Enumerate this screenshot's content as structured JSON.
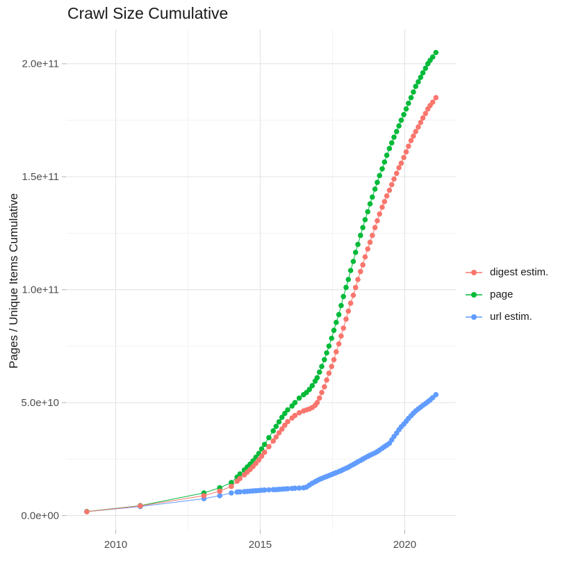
{
  "title": "Crawl Size Cumulative",
  "chart_data": {
    "type": "line",
    "title": "Crawl Size Cumulative",
    "xlabel": "",
    "ylabel": "Pages / Unique Items Cumulative",
    "xlim": [
      2008.28,
      2021.77
    ],
    "ylim": [
      -6300000000.0,
      215300000000.0
    ],
    "x_ticks": [
      {
        "value": 2010,
        "label": "2010"
      },
      {
        "value": 2015,
        "label": "2015"
      },
      {
        "value": 2020,
        "label": "2020"
      }
    ],
    "y_ticks": [
      {
        "value": 0,
        "label": "0.0e+00"
      },
      {
        "value": 50000000000.0,
        "label": "5.0e+10"
      },
      {
        "value": 100000000000.0,
        "label": "1.0e+11"
      },
      {
        "value": 150000000000.0,
        "label": "1.5e+11"
      },
      {
        "value": 200000000000.0,
        "label": "2.0e+11"
      }
    ],
    "x_minor_ticks": [
      2012.5,
      2017.5
    ],
    "y_minor_ticks": [
      25000000000.0,
      75000000000.0,
      125000000000.0,
      175000000000.0
    ],
    "grid": {
      "major_color": "#e5e5e5",
      "minor_color": "#f2f2f2",
      "on": true
    },
    "tick_mark_color": "#bdbdbd",
    "tick_label_color": "#4d4d4d",
    "legend_position": "right",
    "z_order": [
      2,
      1,
      0
    ],
    "point_radius": 3.8,
    "series": [
      {
        "id": "digest-estim",
        "name": "digest estim.",
        "color": "#F8766D",
        "points": [
          [
            2009.0,
            1700000000.0
          ],
          [
            2010.85,
            4300000000.0
          ],
          [
            2013.05,
            8800000000.0
          ],
          [
            2013.6,
            10800000000.0
          ],
          [
            2014.0,
            12900000000.0
          ],
          [
            2014.2,
            15200000000.0
          ],
          [
            2014.3,
            16400000000.0
          ],
          [
            2014.45,
            18000000000.0
          ],
          [
            2014.55,
            19200000000.0
          ],
          [
            2014.65,
            20400000000.0
          ],
          [
            2014.75,
            21700000000.0
          ],
          [
            2014.85,
            23100000000.0
          ],
          [
            2014.95,
            24600000000.0
          ],
          [
            2015.05,
            26300000000.0
          ],
          [
            2015.15,
            28000000000.0
          ],
          [
            2015.3,
            30500000000.0
          ],
          [
            2015.45,
            33000000000.0
          ],
          [
            2015.55,
            34800000000.0
          ],
          [
            2015.65,
            36600000000.0
          ],
          [
            2015.75,
            38300000000.0
          ],
          [
            2015.85,
            40000000000.0
          ],
          [
            2015.95,
            41600000000.0
          ],
          [
            2016.1,
            43200000000.0
          ],
          [
            2016.2,
            44300000000.0
          ],
          [
            2016.35,
            45500000000.0
          ],
          [
            2016.5,
            46300000000.0
          ],
          [
            2016.6,
            46800000000.0
          ],
          [
            2016.7,
            47200000000.0
          ],
          [
            2016.8,
            47800000000.0
          ],
          [
            2016.9,
            48800000000.0
          ],
          [
            2016.97,
            50000000000.0
          ],
          [
            2017.05,
            52000000000.0
          ],
          [
            2017.13,
            54500000000.0
          ],
          [
            2017.22,
            57000000000.0
          ],
          [
            2017.3,
            60000000000.0
          ],
          [
            2017.38,
            63000000000.0
          ],
          [
            2017.47,
            66000000000.0
          ],
          [
            2017.55,
            69000000000.0
          ],
          [
            2017.63,
            72500000000.0
          ],
          [
            2017.72,
            76000000000.0
          ],
          [
            2017.8,
            79500000000.0
          ],
          [
            2017.88,
            83000000000.0
          ],
          [
            2017.97,
            87000000000.0
          ],
          [
            2018.05,
            90500000000.0
          ],
          [
            2018.13,
            94000000000.0
          ],
          [
            2018.22,
            97500000000.0
          ],
          [
            2018.3,
            101000000000.0
          ],
          [
            2018.38,
            104500000000.0
          ],
          [
            2018.47,
            108000000000.0
          ],
          [
            2018.55,
            111000000000.0
          ],
          [
            2018.63,
            114500000000.0
          ],
          [
            2018.72,
            118000000000.0
          ],
          [
            2018.8,
            121000000000.0
          ],
          [
            2018.88,
            124000000000.0
          ],
          [
            2018.97,
            127500000000.0
          ],
          [
            2019.05,
            130500000000.0
          ],
          [
            2019.13,
            133500000000.0
          ],
          [
            2019.22,
            136500000000.0
          ],
          [
            2019.3,
            139000000000.0
          ],
          [
            2019.38,
            141500000000.0
          ],
          [
            2019.47,
            144000000000.0
          ],
          [
            2019.55,
            146500000000.0
          ],
          [
            2019.63,
            149000000000.0
          ],
          [
            2019.72,
            151500000000.0
          ],
          [
            2019.8,
            154000000000.0
          ],
          [
            2019.88,
            156000000000.0
          ],
          [
            2019.97,
            158500000000.0
          ],
          [
            2020.05,
            161000000000.0
          ],
          [
            2020.13,
            163500000000.0
          ],
          [
            2020.22,
            166000000000.0
          ],
          [
            2020.3,
            168000000000.0
          ],
          [
            2020.38,
            170000000000.0
          ],
          [
            2020.47,
            172000000000.0
          ],
          [
            2020.55,
            174000000000.0
          ],
          [
            2020.63,
            176000000000.0
          ],
          [
            2020.72,
            178000000000.0
          ],
          [
            2020.8,
            180000000000.0
          ],
          [
            2020.88,
            181500000000.0
          ],
          [
            2020.97,
            183000000000.0
          ],
          [
            2021.08,
            185000000000.0
          ]
        ]
      },
      {
        "id": "page",
        "name": "page",
        "color": "#00BA38",
        "points": [
          [
            2009.0,
            1800000000.0
          ],
          [
            2010.85,
            4400000000.0
          ],
          [
            2013.05,
            10000000000.0
          ],
          [
            2013.6,
            12300000000.0
          ],
          [
            2014.0,
            14600000000.0
          ],
          [
            2014.2,
            17000000000.0
          ],
          [
            2014.3,
            18400000000.0
          ],
          [
            2014.45,
            20200000000.0
          ],
          [
            2014.55,
            21500000000.0
          ],
          [
            2014.65,
            22800000000.0
          ],
          [
            2014.75,
            24200000000.0
          ],
          [
            2014.85,
            25800000000.0
          ],
          [
            2014.95,
            27500000000.0
          ],
          [
            2015.05,
            29500000000.0
          ],
          [
            2015.15,
            31500000000.0
          ],
          [
            2015.3,
            34500000000.0
          ],
          [
            2015.45,
            37500000000.0
          ],
          [
            2015.55,
            39500000000.0
          ],
          [
            2015.65,
            41500000000.0
          ],
          [
            2015.75,
            43500000000.0
          ],
          [
            2015.85,
            45200000000.0
          ],
          [
            2015.95,
            46800000000.0
          ],
          [
            2016.1,
            48500000000.0
          ],
          [
            2016.2,
            50000000000.0
          ],
          [
            2016.35,
            52000000000.0
          ],
          [
            2016.5,
            53500000000.0
          ],
          [
            2016.6,
            54500000000.0
          ],
          [
            2016.7,
            55800000000.0
          ],
          [
            2016.8,
            57500000000.0
          ],
          [
            2016.9,
            59500000000.0
          ],
          [
            2016.97,
            61000000000.0
          ],
          [
            2017.05,
            63500000000.0
          ],
          [
            2017.13,
            66000000000.0
          ],
          [
            2017.22,
            69000000000.0
          ],
          [
            2017.3,
            72000000000.0
          ],
          [
            2017.38,
            75000000000.0
          ],
          [
            2017.47,
            78500000000.0
          ],
          [
            2017.55,
            82000000000.0
          ],
          [
            2017.63,
            85500000000.0
          ],
          [
            2017.72,
            89000000000.0
          ],
          [
            2017.8,
            93000000000.0
          ],
          [
            2017.88,
            97000000000.0
          ],
          [
            2017.97,
            101000000000.0
          ],
          [
            2018.05,
            104500000000.0
          ],
          [
            2018.13,
            108500000000.0
          ],
          [
            2018.22,
            112500000000.0
          ],
          [
            2018.3,
            116500000000.0
          ],
          [
            2018.38,
            120000000000.0
          ],
          [
            2018.47,
            124000000000.0
          ],
          [
            2018.55,
            127500000000.0
          ],
          [
            2018.63,
            131000000000.0
          ],
          [
            2018.72,
            134500000000.0
          ],
          [
            2018.8,
            138000000000.0
          ],
          [
            2018.88,
            141000000000.0
          ],
          [
            2018.97,
            144500000000.0
          ],
          [
            2019.05,
            147500000000.0
          ],
          [
            2019.13,
            150500000000.0
          ],
          [
            2019.22,
            153500000000.0
          ],
          [
            2019.3,
            156500000000.0
          ],
          [
            2019.38,
            159500000000.0
          ],
          [
            2019.47,
            162500000000.0
          ],
          [
            2019.55,
            165000000000.0
          ],
          [
            2019.63,
            167500000000.0
          ],
          [
            2019.72,
            170000000000.0
          ],
          [
            2019.8,
            172500000000.0
          ],
          [
            2019.88,
            175000000000.0
          ],
          [
            2019.97,
            177500000000.0
          ],
          [
            2020.05,
            180000000000.0
          ],
          [
            2020.13,
            182500000000.0
          ],
          [
            2020.22,
            185000000000.0
          ],
          [
            2020.3,
            187500000000.0
          ],
          [
            2020.38,
            190000000000.0
          ],
          [
            2020.47,
            192000000000.0
          ],
          [
            2020.55,
            194000000000.0
          ],
          [
            2020.63,
            196000000000.0
          ],
          [
            2020.72,
            198000000000.0
          ],
          [
            2020.8,
            200000000000.0
          ],
          [
            2020.88,
            201500000000.0
          ],
          [
            2020.97,
            203000000000.0
          ],
          [
            2021.08,
            205000000000.0
          ]
        ]
      },
      {
        "id": "url-estim",
        "name": "url estim.",
        "color": "#619CFF",
        "points": [
          [
            2009.0,
            1700000000.0
          ],
          [
            2010.85,
            4000000000.0
          ],
          [
            2013.05,
            7500000000.0
          ],
          [
            2013.6,
            8800000000.0
          ],
          [
            2014.0,
            10000000000.0
          ],
          [
            2014.2,
            10400000000.0
          ],
          [
            2014.3,
            10500000000.0
          ],
          [
            2014.45,
            10600000000.0
          ],
          [
            2014.55,
            10700000000.0
          ],
          [
            2014.65,
            10800000000.0
          ],
          [
            2014.75,
            10900000000.0
          ],
          [
            2014.85,
            11000000000.0
          ],
          [
            2014.95,
            11100000000.0
          ],
          [
            2015.05,
            11200000000.0
          ],
          [
            2015.15,
            11300000000.0
          ],
          [
            2015.3,
            11400000000.0
          ],
          [
            2015.45,
            11500000000.0
          ],
          [
            2015.55,
            11500000000.0
          ],
          [
            2015.65,
            11600000000.0
          ],
          [
            2015.75,
            11700000000.0
          ],
          [
            2015.85,
            11800000000.0
          ],
          [
            2015.95,
            11900000000.0
          ],
          [
            2016.1,
            12000000000.0
          ],
          [
            2016.2,
            12100000000.0
          ],
          [
            2016.35,
            12200000000.0
          ],
          [
            2016.5,
            12300000000.0
          ],
          [
            2016.6,
            12600000000.0
          ],
          [
            2016.7,
            13500000000.0
          ],
          [
            2016.8,
            14300000000.0
          ],
          [
            2016.9,
            15000000000.0
          ],
          [
            2016.97,
            15500000000.0
          ],
          [
            2017.05,
            16000000000.0
          ],
          [
            2017.13,
            16400000000.0
          ],
          [
            2017.22,
            16900000000.0
          ],
          [
            2017.3,
            17300000000.0
          ],
          [
            2017.38,
            17700000000.0
          ],
          [
            2017.47,
            18200000000.0
          ],
          [
            2017.55,
            18600000000.0
          ],
          [
            2017.63,
            19000000000.0
          ],
          [
            2017.72,
            19500000000.0
          ],
          [
            2017.8,
            19900000000.0
          ],
          [
            2017.88,
            20400000000.0
          ],
          [
            2017.97,
            20900000000.0
          ],
          [
            2018.05,
            21400000000.0
          ],
          [
            2018.13,
            22000000000.0
          ],
          [
            2018.22,
            22600000000.0
          ],
          [
            2018.3,
            23200000000.0
          ],
          [
            2018.38,
            23800000000.0
          ],
          [
            2018.47,
            24400000000.0
          ],
          [
            2018.55,
            25000000000.0
          ],
          [
            2018.63,
            25600000000.0
          ],
          [
            2018.72,
            26200000000.0
          ],
          [
            2018.8,
            26700000000.0
          ],
          [
            2018.88,
            27200000000.0
          ],
          [
            2018.97,
            27700000000.0
          ],
          [
            2019.05,
            28300000000.0
          ],
          [
            2019.13,
            29000000000.0
          ],
          [
            2019.22,
            29800000000.0
          ],
          [
            2019.3,
            30500000000.0
          ],
          [
            2019.38,
            31200000000.0
          ],
          [
            2019.47,
            32000000000.0
          ],
          [
            2019.55,
            33500000000.0
          ],
          [
            2019.63,
            35000000000.0
          ],
          [
            2019.72,
            36500000000.0
          ],
          [
            2019.8,
            38000000000.0
          ],
          [
            2019.88,
            39300000000.0
          ],
          [
            2019.97,
            40500000000.0
          ],
          [
            2020.05,
            41700000000.0
          ],
          [
            2020.13,
            43000000000.0
          ],
          [
            2020.22,
            44200000000.0
          ],
          [
            2020.3,
            45300000000.0
          ],
          [
            2020.38,
            46300000000.0
          ],
          [
            2020.47,
            47200000000.0
          ],
          [
            2020.55,
            48000000000.0
          ],
          [
            2020.63,
            48800000000.0
          ],
          [
            2020.72,
            49600000000.0
          ],
          [
            2020.8,
            50400000000.0
          ],
          [
            2020.88,
            51200000000.0
          ],
          [
            2020.97,
            52200000000.0
          ],
          [
            2021.08,
            53500000000.0
          ]
        ]
      }
    ]
  }
}
